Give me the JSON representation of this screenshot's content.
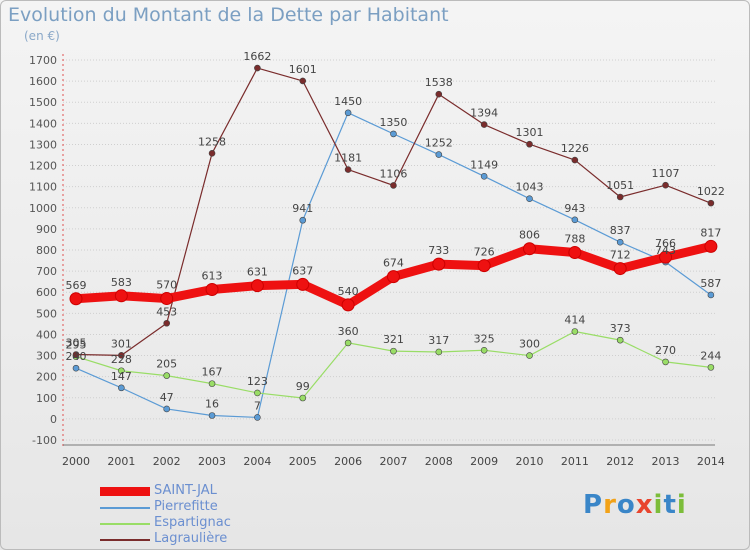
{
  "header": {
    "title": "Evolution du Montant de la Dette par Habitant",
    "subtitle": "(en €)"
  },
  "logo": {
    "letters": [
      "P",
      "r",
      "o",
      "x",
      "i",
      "t",
      "i"
    ],
    "colors": [
      "#3a86c8",
      "#f2a218",
      "#3a86c8",
      "#e8452e",
      "#7cbd3a",
      "#3a86c8",
      "#7cbd3a"
    ]
  },
  "chart_data": {
    "type": "line",
    "title": "Evolution du Montant de la Dette par Habitant",
    "ylabel": "(en €)",
    "x": [
      "2000",
      "2001",
      "2002",
      "2003",
      "2004",
      "2005",
      "2006",
      "2007",
      "2008",
      "2009",
      "2010",
      "2011",
      "2012",
      "2013",
      "2014"
    ],
    "ylim": [
      -100,
      1700
    ],
    "yticks": [
      -100,
      0,
      100,
      200,
      300,
      400,
      500,
      600,
      700,
      800,
      900,
      1000,
      1100,
      1200,
      1300,
      1400,
      1500,
      1600,
      1700
    ],
    "grid": true,
    "legend": "bottom-left",
    "series": [
      {
        "name": "SAINT-JAL",
        "color": "#ee1111",
        "values": [
          569,
          583,
          570,
          613,
          631,
          637,
          540,
          674,
          733,
          726,
          806,
          788,
          712,
          766,
          817
        ]
      },
      {
        "name": "Pierrefitte",
        "color": "#5b9bd5",
        "values": [
          240,
          147,
          47,
          16,
          7,
          941,
          1450,
          1350,
          1252,
          1149,
          1043,
          943,
          837,
          743,
          587
        ]
      },
      {
        "name": "Espartignac",
        "color": "#99dd66",
        "values": [
          295,
          228,
          205,
          167,
          123,
          99,
          360,
          321,
          317,
          325,
          300,
          414,
          373,
          270,
          244
        ]
      },
      {
        "name": "Lagraulière",
        "color": "#7a2c2c",
        "values": [
          305,
          301,
          453,
          1258,
          1662,
          1601,
          1181,
          1106,
          1538,
          1394,
          1301,
          1226,
          1051,
          1107,
          1022
        ]
      }
    ]
  }
}
